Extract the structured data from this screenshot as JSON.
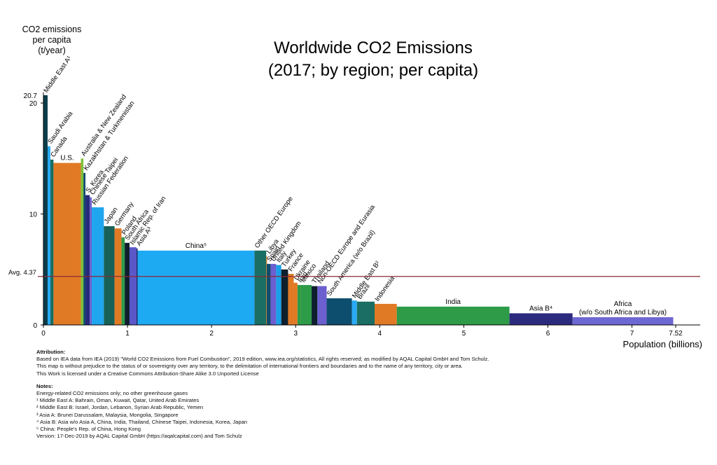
{
  "chart_data": {
    "type": "bar",
    "variant": "variable-width",
    "title": "Worldwide CO2 Emissions",
    "subtitle": "(2017; by region; per capita)",
    "ylabel": [
      "CO2 emissions",
      "per capita",
      "(t/year)"
    ],
    "xlabel": "Population (billions)",
    "ylim": [
      0,
      21.5
    ],
    "xlim": [
      0,
      7.65
    ],
    "y_ticks": [
      0,
      10,
      20
    ],
    "y_max_label": "20.7",
    "x_ticks": [
      0,
      1,
      2,
      3,
      4,
      5,
      6,
      7
    ],
    "x_max_label": "7.52",
    "average": {
      "label": "Avg. 4.37",
      "value": 4.37,
      "color": "#8b2a34"
    },
    "bars": [
      {
        "name": "Middle East A¹",
        "pop": 0.05,
        "value": 20.7,
        "color": "#0d3d4b",
        "label": "rot"
      },
      {
        "name": "Saudi Arabia",
        "pop": 0.033,
        "value": 16.1,
        "color": "#29aaf4",
        "label": "rot"
      },
      {
        "name": "Canada",
        "pop": 0.037,
        "value": 14.9,
        "color": "#1a6e63",
        "label": "rot"
      },
      {
        "name": "U.S.",
        "pop": 0.326,
        "value": 14.6,
        "color": "#e07a25",
        "label": "inside"
      },
      {
        "name": "Australia & New Zealand",
        "pop": 0.03,
        "value": 15.0,
        "color": "#7ec23a",
        "label": "rot"
      },
      {
        "name": "Kazakhstan & Turkmenistan",
        "pop": 0.024,
        "value": 13.7,
        "color": "#104c6c",
        "label": "rot"
      },
      {
        "name": "S. Korea",
        "pop": 0.051,
        "value": 11.7,
        "color": "#262a7a",
        "label": "rot"
      },
      {
        "name": "Chinese Taipei",
        "pop": 0.024,
        "value": 11.5,
        "color": "#6c5fcf",
        "label": "rot"
      },
      {
        "name": "Russian Federation",
        "pop": 0.144,
        "value": 10.6,
        "color": "#20a5ef",
        "label": "rot"
      },
      {
        "name": "Japan",
        "pop": 0.127,
        "value": 8.9,
        "color": "#186158",
        "label": "rot"
      },
      {
        "name": "Germany",
        "pop": 0.083,
        "value": 8.7,
        "color": "#e07a25",
        "label": "rot"
      },
      {
        "name": "Poland",
        "pop": 0.038,
        "value": 7.9,
        "color": "#2e9b48",
        "label": "rot"
      },
      {
        "name": "South Africa",
        "pop": 0.057,
        "value": 7.4,
        "color": "#0d1f2c",
        "label": "rot"
      },
      {
        "name": "Islamic Rep. of Iran",
        "pop": 0.081,
        "value": 7.0,
        "color": "#5b57c9",
        "label": "rot"
      },
      {
        "name": "Asia A³",
        "pop": 0.015,
        "value": 6.9,
        "color": "#1c2a72",
        "label": "rot"
      },
      {
        "name": "China⁵",
        "pop": 1.39,
        "value": 6.7,
        "color": "#1eaaf3",
        "label": "inside"
      },
      {
        "name": "Other OECD Europe",
        "pop": 0.14,
        "value": 6.7,
        "color": "#1a6e63",
        "label": "rot"
      },
      {
        "name": "Libya",
        "pop": 0.006,
        "value": 6.2,
        "color": "#e07a25",
        "label": "rot"
      },
      {
        "name": "Spain",
        "pop": 0.046,
        "value": 5.5,
        "color": "#104c6c",
        "label": "rot"
      },
      {
        "name": "United Kingdom",
        "pop": 0.066,
        "value": 5.5,
        "color": "#6c5fcf",
        "label": "rot"
      },
      {
        "name": "Italy",
        "pop": 0.061,
        "value": 5.4,
        "color": "#1a9fe8",
        "label": "rot"
      },
      {
        "name": "Turkey",
        "pop": 0.081,
        "value": 5.0,
        "color": "#0d1f2c",
        "label": "rot"
      },
      {
        "name": "France",
        "pop": 0.067,
        "value": 4.6,
        "color": "#e07a25",
        "label": "rot"
      },
      {
        "name": "Ukraine",
        "pop": 0.045,
        "value": 3.8,
        "color": "#e07a25",
        "label": "rot"
      },
      {
        "name": "Iraq",
        "pop": 0.038,
        "value": 3.6,
        "color": "#2e9b48",
        "label": "rot"
      },
      {
        "name": "Mexico",
        "pop": 0.13,
        "value": 3.6,
        "color": "#2e9b48",
        "label": "rot"
      },
      {
        "name": "Thailand",
        "pop": 0.069,
        "value": 3.5,
        "color": "#0d1f2c",
        "label": "rot"
      },
      {
        "name": "Non-OECD Europe and Eurasia",
        "pop": 0.11,
        "value": 3.5,
        "color": "#6c5fcf",
        "label": "rot"
      },
      {
        "name": "South America (w/o Brazil)",
        "pop": 0.3,
        "value": 2.4,
        "color": "#0d4d6e",
        "label": "rot"
      },
      {
        "name": "Middle East B²",
        "pop": 0.06,
        "value": 2.2,
        "color": "#29aaf4",
        "label": "rot"
      },
      {
        "name": "Brazil",
        "pop": 0.21,
        "value": 2.1,
        "color": "#1a6e63",
        "label": "rot"
      },
      {
        "name": "Indonesia",
        "pop": 0.264,
        "value": 1.9,
        "color": "#e07a25",
        "label": "rot"
      },
      {
        "name": "India",
        "pop": 1.34,
        "value": 1.65,
        "color": "#2e9b48",
        "label": "inside"
      },
      {
        "name": "Asia B⁴",
        "pop": 0.75,
        "value": 1.05,
        "color": "#2c2a7e",
        "label": "inside"
      },
      {
        "name": "Africa\n(w/o South Africa and Libya)",
        "pop": 1.198,
        "value": 0.7,
        "color": "#6e68d2",
        "label": "inside"
      }
    ]
  },
  "notes": {
    "attribution_heading": "Attribution:",
    "attribution_lines": [
      "Based on IEA data from IEA (2019) \"World CO2 Emissions from Fuel Combustion\", 2019 edition, www.iea.org/statistics, All rights reserved; as modified by AQAL Capital GmbH and Tom Schulz.",
      "This map is without prejudice to the status of or sovereignty over any territory, to the delimitation of international frontiers and boundaries and to the name of any territory, city or area.",
      "This Work is licensed under a Creative Commons Attribution-Share Alike 3.0 Unported License"
    ],
    "notes_heading": "Notes:",
    "notes_lines": [
      "Energy-related CO2 emissions only; no other greenhouse gases",
      "¹ Middle East A: Bahrain, Oman, Kuwait, Qatar, United Arab Emirates",
      "² Middle East B: Israel, Jordan, Lebanon, Syrian Arab Republic, Yemen",
      "³ Asia A: Brunei Darussalam, Malaysia, Mongolia, Singapore",
      "⁴ Asia B: Asia w/o Asia A, China, India, Thailand, Chinese Taipei, Indonesia, Korea, Japan",
      "⁵ China: People's Rep. of China, Hong Kong",
      "Version: 17-Dec-2019 by AQAL Capital GmbH (https://aqalcapital.com) and Tom Schulz"
    ]
  }
}
